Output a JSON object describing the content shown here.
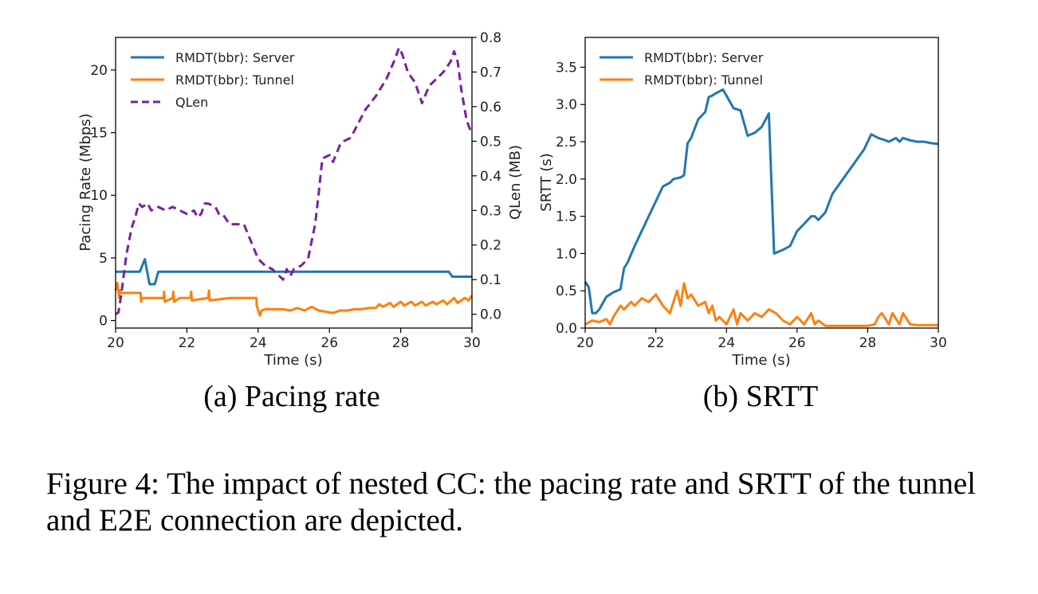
{
  "figure_caption": "Figure 4: The impact of nested CC: the pacing rate and SRTT of the tunnel and E2E connection are depicted.",
  "colors": {
    "server": "#1f77b4",
    "tunnel": "#ff7f0e",
    "qlen": "#7b1fa2"
  },
  "chart_data": [
    {
      "type": "line",
      "subcaption": "(a) Pacing rate",
      "xlabel": "Time (s)",
      "ylabel": "Pacing Rate (Mbps)",
      "y2label": "QLen (MB)",
      "xlim": [
        20,
        30
      ],
      "ylim": [
        -0.6,
        22.6
      ],
      "y2lim": [
        -0.04,
        0.8
      ],
      "xticks": [
        20,
        22,
        24,
        26,
        28,
        30
      ],
      "yticks": [
        0,
        5,
        10,
        15,
        20
      ],
      "y2ticks": [
        0.0,
        0.1,
        0.2,
        0.3,
        0.4,
        0.5,
        0.6,
        0.7,
        0.8
      ],
      "xtick_labels": [
        "20",
        "22",
        "24",
        "26",
        "28",
        "30"
      ],
      "ytick_labels": [
        "0",
        "5",
        "10",
        "15",
        "20"
      ],
      "y2tick_labels": [
        "0.0",
        "0.1",
        "0.2",
        "0.3",
        "0.4",
        "0.5",
        "0.6",
        "0.7",
        "0.8"
      ],
      "legend_position": "top-left",
      "series": [
        {
          "name": "RMDT(bbr): Server",
          "axis": "left",
          "color": "#1f77b4",
          "style": "solid",
          "x": [
            20,
            20.68,
            20.82,
            20.95,
            21.1,
            21.2,
            24.5,
            29.35,
            29.45,
            30
          ],
          "y": [
            3.9,
            3.9,
            4.9,
            2.9,
            2.9,
            3.9,
            3.9,
            3.9,
            3.5,
            3.5
          ]
        },
        {
          "name": "RMDT(bbr): Tunnel",
          "axis": "left",
          "color": "#ff7f0e",
          "style": "solid",
          "x": [
            20,
            20.05,
            20.1,
            20.12,
            20.15,
            20.3,
            20.7,
            20.72,
            20.74,
            20.9,
            21.35,
            21.36,
            21.38,
            21.6,
            21.62,
            21.64,
            21.8,
            22.1,
            22.12,
            22.14,
            22.6,
            22.62,
            22.64,
            23.2,
            23.5,
            23.95,
            23.96,
            24.05,
            24.1,
            24.2,
            24.5,
            24.7,
            24.9,
            25.1,
            25.3,
            25.5,
            25.7,
            25.9,
            26.1,
            26.3,
            26.5,
            26.7,
            26.9,
            27.1,
            27.3,
            27.4,
            27.5,
            27.7,
            27.8,
            28.0,
            28.1,
            28.3,
            28.4,
            28.6,
            28.7,
            28.9,
            29.0,
            29.2,
            29.3,
            29.5,
            29.6,
            29.8,
            29.9,
            30
          ],
          "y": [
            2.4,
            3.0,
            1.8,
            2.4,
            2.2,
            2.2,
            2.2,
            1.5,
            1.8,
            1.8,
            1.8,
            2.3,
            1.5,
            1.8,
            2.3,
            1.5,
            1.8,
            1.8,
            2.3,
            1.6,
            1.8,
            2.4,
            1.6,
            1.8,
            1.8,
            1.8,
            1.2,
            0.4,
            0.8,
            0.9,
            0.9,
            0.9,
            0.8,
            1.0,
            0.8,
            1.1,
            0.8,
            0.7,
            0.6,
            0.8,
            0.8,
            0.9,
            0.9,
            1.0,
            1.0,
            1.3,
            1.1,
            1.4,
            1.1,
            1.5,
            1.2,
            1.5,
            1.2,
            1.5,
            1.2,
            1.5,
            1.3,
            1.6,
            1.3,
            1.8,
            1.4,
            1.8,
            1.6,
            2.0
          ]
        },
        {
          "name": "QLen",
          "axis": "right",
          "color": "#7b1fa2",
          "style": "dashed",
          "x": [
            20,
            20.08,
            20.15,
            20.3,
            20.45,
            20.55,
            20.65,
            20.75,
            20.9,
            21.0,
            21.2,
            21.4,
            21.6,
            21.8,
            22.0,
            22.2,
            22.3,
            22.4,
            22.5,
            22.6,
            22.8,
            22.9,
            23.0,
            23.2,
            23.4,
            23.6,
            23.8,
            24.0,
            24.2,
            24.4,
            24.5,
            24.6,
            24.7,
            24.8,
            24.9,
            25.0,
            25.2,
            25.4,
            25.6,
            25.7,
            25.8,
            26.0,
            26.1,
            26.3,
            26.4,
            26.6,
            26.8,
            27.0,
            27.3,
            27.6,
            27.85,
            27.95,
            28.05,
            28.2,
            28.4,
            28.6,
            28.8,
            29.0,
            29.2,
            29.4,
            29.5,
            29.6,
            29.7,
            29.85,
            30
          ],
          "y": [
            0.0,
            0.005,
            0.05,
            0.17,
            0.25,
            0.28,
            0.32,
            0.31,
            0.32,
            0.3,
            0.31,
            0.3,
            0.31,
            0.3,
            0.29,
            0.3,
            0.28,
            0.29,
            0.32,
            0.32,
            0.31,
            0.29,
            0.29,
            0.26,
            0.26,
            0.26,
            0.21,
            0.16,
            0.14,
            0.13,
            0.12,
            0.11,
            0.1,
            0.13,
            0.11,
            0.13,
            0.14,
            0.16,
            0.26,
            0.35,
            0.45,
            0.46,
            0.44,
            0.49,
            0.5,
            0.51,
            0.55,
            0.59,
            0.63,
            0.68,
            0.74,
            0.77,
            0.75,
            0.7,
            0.67,
            0.61,
            0.66,
            0.68,
            0.7,
            0.73,
            0.76,
            0.73,
            0.65,
            0.56,
            0.52
          ]
        }
      ]
    },
    {
      "type": "line",
      "subcaption": "(b) SRTT",
      "xlabel": "Time (s)",
      "ylabel": "SRTT (s)",
      "xlim": [
        20,
        30
      ],
      "ylim": [
        0,
        3.9
      ],
      "xticks": [
        20,
        22,
        24,
        26,
        28,
        30
      ],
      "yticks": [
        0.0,
        0.5,
        1.0,
        1.5,
        2.0,
        2.5,
        3.0,
        3.5
      ],
      "xtick_labels": [
        "20",
        "22",
        "24",
        "26",
        "28",
        "30"
      ],
      "ytick_labels": [
        "0.0",
        "0.5",
        "1.0",
        "1.5",
        "2.0",
        "2.5",
        "3.0",
        "3.5"
      ],
      "legend_position": "top-left",
      "series": [
        {
          "name": "RMDT(bbr): Server",
          "color": "#1f77b4",
          "style": "solid",
          "x": [
            20,
            20.1,
            20.2,
            20.3,
            20.4,
            20.6,
            20.8,
            21.0,
            21.1,
            21.2,
            21.4,
            21.6,
            21.8,
            22.0,
            22.2,
            22.4,
            22.5,
            22.7,
            22.8,
            22.9,
            23.0,
            23.2,
            23.4,
            23.5,
            23.6,
            23.7,
            23.9,
            24.0,
            24.2,
            24.4,
            24.6,
            24.8,
            25.0,
            25.2,
            25.35,
            25.6,
            25.8,
            26.0,
            26.2,
            26.4,
            26.5,
            26.6,
            26.8,
            27.0,
            27.3,
            27.6,
            27.9,
            28.1,
            28.3,
            28.5,
            28.6,
            28.8,
            28.9,
            29.0,
            29.2,
            29.4,
            29.6,
            29.8,
            30
          ],
          "y": [
            0.62,
            0.55,
            0.2,
            0.2,
            0.25,
            0.42,
            0.48,
            0.52,
            0.8,
            0.88,
            1.1,
            1.3,
            1.5,
            1.7,
            1.9,
            1.95,
            2.0,
            2.02,
            2.05,
            2.48,
            2.55,
            2.8,
            2.9,
            3.1,
            3.12,
            3.15,
            3.2,
            3.12,
            2.95,
            2.92,
            2.58,
            2.62,
            2.7,
            2.88,
            1.0,
            1.05,
            1.1,
            1.3,
            1.4,
            1.5,
            1.5,
            1.45,
            1.55,
            1.8,
            2.0,
            2.2,
            2.4,
            2.6,
            2.55,
            2.52,
            2.5,
            2.55,
            2.5,
            2.55,
            2.52,
            2.5,
            2.5,
            2.48,
            2.47
          ]
        },
        {
          "name": "RMDT(bbr): Tunnel",
          "color": "#ff7f0e",
          "style": "solid",
          "x": [
            20,
            20.2,
            20.4,
            20.6,
            20.7,
            20.8,
            21.0,
            21.1,
            21.3,
            21.4,
            21.6,
            21.8,
            22.0,
            22.2,
            22.4,
            22.6,
            22.7,
            22.8,
            22.9,
            23.0,
            23.2,
            23.4,
            23.5,
            23.6,
            23.7,
            23.8,
            24.0,
            24.2,
            24.3,
            24.4,
            24.6,
            24.8,
            25.0,
            25.2,
            25.4,
            25.6,
            25.8,
            26.0,
            26.2,
            26.4,
            26.5,
            26.6,
            26.8,
            27.0,
            27.5,
            28.0,
            28.2,
            28.3,
            28.4,
            28.6,
            28.7,
            28.9,
            29.0,
            29.2,
            29.4,
            30
          ],
          "y": [
            0.05,
            0.1,
            0.08,
            0.12,
            0.05,
            0.15,
            0.3,
            0.25,
            0.35,
            0.3,
            0.4,
            0.35,
            0.45,
            0.3,
            0.2,
            0.5,
            0.3,
            0.6,
            0.4,
            0.45,
            0.3,
            0.35,
            0.2,
            0.3,
            0.1,
            0.15,
            0.05,
            0.25,
            0.05,
            0.2,
            0.1,
            0.2,
            0.15,
            0.25,
            0.2,
            0.1,
            0.05,
            0.15,
            0.05,
            0.2,
            0.05,
            0.1,
            0.03,
            0.03,
            0.03,
            0.03,
            0.05,
            0.15,
            0.2,
            0.05,
            0.2,
            0.05,
            0.2,
            0.05,
            0.04,
            0.04
          ]
        }
      ]
    }
  ]
}
